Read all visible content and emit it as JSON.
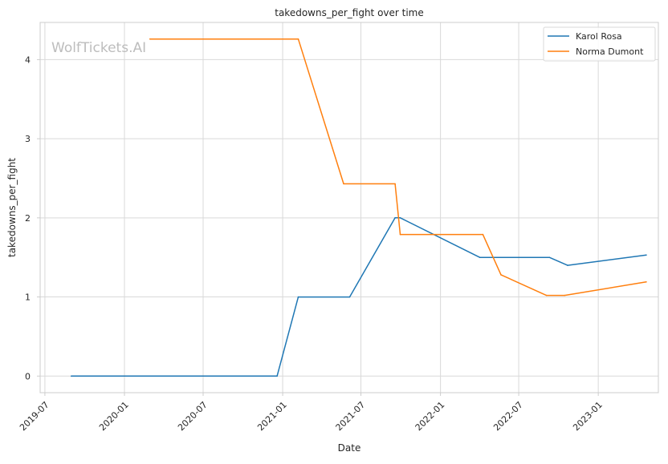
{
  "chart_data": {
    "type": "line",
    "title": "takedowns_per_fight over time",
    "xlabel": "Date",
    "ylabel": "takedowns_per_fight",
    "watermark": "WolfTickets.AI",
    "x_ticks": [
      "2019-07",
      "2020-01",
      "2020-07",
      "2021-01",
      "2021-07",
      "2022-01",
      "2022-07",
      "2023-01"
    ],
    "y_ticks": [
      0,
      1,
      2,
      3,
      4
    ],
    "xlim": [
      "2019-06-20",
      "2023-05-20"
    ],
    "ylim": [
      -0.21,
      4.47
    ],
    "grid": true,
    "legend_position": "top-right",
    "series": [
      {
        "name": "Karol Rosa",
        "color": "#1f77b4",
        "points": [
          {
            "x": "2019-08-31",
            "y": 0
          },
          {
            "x": "2020-12-19",
            "y": 0
          },
          {
            "x": "2021-02-06",
            "y": 1
          },
          {
            "x": "2021-06-05",
            "y": 1
          },
          {
            "x": "2021-09-18",
            "y": 2
          },
          {
            "x": "2021-09-30",
            "y": 2
          },
          {
            "x": "2022-04-02",
            "y": 1.5
          },
          {
            "x": "2022-09-10",
            "y": 1.5
          },
          {
            "x": "2022-10-22",
            "y": 1.4
          },
          {
            "x": "2023-04-22",
            "y": 1.53
          }
        ]
      },
      {
        "name": "Norma Dumont",
        "color": "#ff7f0e",
        "points": [
          {
            "x": "2020-02-29",
            "y": 4.26
          },
          {
            "x": "2021-02-06",
            "y": 4.26
          },
          {
            "x": "2021-05-22",
            "y": 2.43
          },
          {
            "x": "2021-09-18",
            "y": 2.43
          },
          {
            "x": "2021-09-30",
            "y": 1.79
          },
          {
            "x": "2022-04-09",
            "y": 1.79
          },
          {
            "x": "2022-05-21",
            "y": 1.28
          },
          {
            "x": "2022-09-03",
            "y": 1.02
          },
          {
            "x": "2022-10-15",
            "y": 1.02
          },
          {
            "x": "2023-04-22",
            "y": 1.19
          }
        ]
      }
    ]
  }
}
